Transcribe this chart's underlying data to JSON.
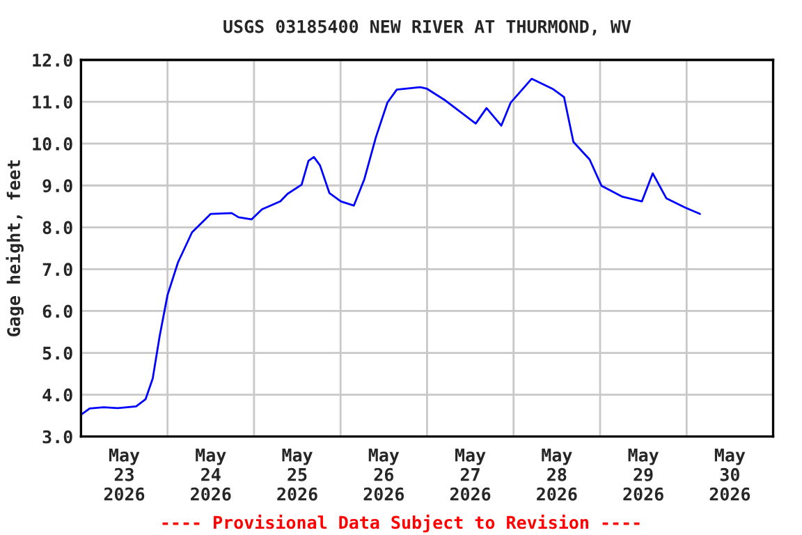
{
  "chart_data": {
    "type": "line",
    "title": "USGS 03185400 NEW RIVER AT THURMOND, WV",
    "ylabel": "Gage height, feet",
    "annotations": [
      "---- Provisional Data Subject to Revision ----"
    ],
    "x": [
      "2026-05-23T00:00",
      "2026-05-23T02:24",
      "2026-05-23T06:18",
      "2026-05-23T10:12",
      "2026-05-23T15:18",
      "2026-05-23T17:54",
      "2026-05-23T19:54",
      "2026-05-23T21:48",
      "2026-05-24T00:00",
      "2026-05-24T02:54",
      "2026-05-24T06:48",
      "2026-05-24T12:00",
      "2026-05-24T17:48",
      "2026-05-24T19:42",
      "2026-05-24T23:18",
      "2026-05-25T02:12",
      "2026-05-25T07:18",
      "2026-05-25T09:18",
      "2026-05-25T13:12",
      "2026-05-25T15:06",
      "2026-05-25T16:36",
      "2026-05-25T18:18",
      "2026-05-25T20:54",
      "2026-05-26T00:06",
      "2026-05-26T03:42",
      "2026-05-26T06:36",
      "2026-05-26T09:48",
      "2026-05-26T13:00",
      "2026-05-26T15:36",
      "2026-05-26T22:06",
      "2026-05-27T00:00",
      "2026-05-27T05:06",
      "2026-05-27T13:30",
      "2026-05-27T16:30",
      "2026-05-27T20:36",
      "2026-05-27T23:12",
      "2026-05-28T05:00",
      "2026-05-28T10:48",
      "2026-05-28T14:00",
      "2026-05-28T16:36",
      "2026-05-28T21:06",
      "2026-05-29T00:24",
      "2026-05-29T06:12",
      "2026-05-29T11:36",
      "2026-05-29T14:36",
      "2026-05-29T18:24",
      "2026-05-29T23:36",
      "2026-05-30T03:42"
    ],
    "series": [
      {
        "color": "#0000ff",
        "values": [
          3.52,
          3.67,
          3.7,
          3.68,
          3.72,
          3.89,
          4.39,
          5.39,
          6.38,
          7.16,
          7.88,
          8.32,
          8.34,
          8.24,
          8.19,
          8.43,
          8.62,
          8.8,
          9.02,
          9.59,
          9.68,
          9.48,
          8.82,
          8.62,
          8.52,
          9.15,
          10.15,
          10.98,
          11.29,
          11.35,
          11.31,
          11.03,
          10.48,
          10.85,
          10.43,
          10.98,
          11.55,
          11.31,
          11.11,
          10.04,
          9.62,
          8.99,
          8.73,
          8.62,
          9.29,
          8.69,
          8.47,
          8.32
        ]
      }
    ],
    "xlim": [
      "2026-05-23T00:00",
      "2026-05-31T00:00"
    ],
    "xticks": [
      {
        "value": "2026-05-23T00:00",
        "label": null
      },
      {
        "value": "2026-05-23T12:00",
        "label": "May\n23\n2026"
      },
      {
        "value": "2026-05-24T00:00",
        "label": null
      },
      {
        "value": "2026-05-24T12:00",
        "label": "May\n24\n2026"
      },
      {
        "value": "2026-05-25T00:00",
        "label": null
      },
      {
        "value": "2026-05-25T12:00",
        "label": "May\n25\n2026"
      },
      {
        "value": "2026-05-26T00:00",
        "label": null
      },
      {
        "value": "2026-05-26T12:00",
        "label": "May\n26\n2026"
      },
      {
        "value": "2026-05-27T00:00",
        "label": null
      },
      {
        "value": "2026-05-27T12:00",
        "label": "May\n27\n2026"
      },
      {
        "value": "2026-05-28T00:00",
        "label": null
      },
      {
        "value": "2026-05-28T12:00",
        "label": "May\n28\n2026"
      },
      {
        "value": "2026-05-29T00:00",
        "label": null
      },
      {
        "value": "2026-05-29T12:00",
        "label": "May\n29\n2026"
      },
      {
        "value": "2026-05-30T00:00",
        "label": null
      },
      {
        "value": "2026-05-30T12:00",
        "label": "May\n30\n2026"
      },
      {
        "value": "2026-05-31T00:00",
        "label": null
      }
    ],
    "ylim": [
      3,
      12
    ],
    "yticks": [
      {
        "value": 3,
        "label": "3.0"
      },
      {
        "value": 4,
        "label": "4.0"
      },
      {
        "value": 5,
        "label": "5.0"
      },
      {
        "value": 6,
        "label": "6.0"
      },
      {
        "value": 7,
        "label": "7.0"
      },
      {
        "value": 8,
        "label": "8.0"
      },
      {
        "value": 9,
        "label": "9.0"
      },
      {
        "value": 10,
        "label": "10.0"
      },
      {
        "value": 11,
        "label": "11.0"
      },
      {
        "value": 12,
        "label": "12.0"
      }
    ],
    "grid": true,
    "legend": false,
    "marker": "none",
    "line_style": "solid"
  }
}
